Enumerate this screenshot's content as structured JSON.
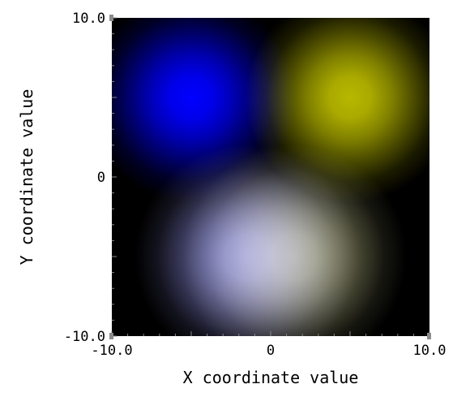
{
  "chart_data": {
    "type": "heatmap",
    "title": "",
    "xlabel": "X coordinate value",
    "ylabel": "Y coordinate value",
    "xlim": [
      -10.0,
      10.0
    ],
    "ylim": [
      -10.0,
      10.0
    ],
    "x_ticks": [
      {
        "value": -10.0,
        "label": "-10.0"
      },
      {
        "value": 0,
        "label": "0"
      },
      {
        "value": 10.0,
        "label": "10.0"
      }
    ],
    "y_ticks": [
      {
        "value": 10.0,
        "label": "10.0"
      },
      {
        "value": 0,
        "label": "0"
      },
      {
        "value": -10.0,
        "label": "-10.0"
      }
    ],
    "background_color": "#000000",
    "grid": false,
    "legend": "none",
    "blobs": [
      {
        "x": -5,
        "y": 5,
        "spread": 3,
        "color": "#0000ff",
        "intensity": 1.0
      },
      {
        "x": 5,
        "y": 5,
        "spread": 3,
        "color": "#d8d800",
        "intensity": 0.85
      },
      {
        "x": -1.5,
        "y": -5,
        "spread": 3.2,
        "color": "#9a9af5",
        "intensity": 0.85
      },
      {
        "x": 1.5,
        "y": -5,
        "spread": 3.2,
        "color": "#cfcf95",
        "intensity": 0.75
      }
    ]
  }
}
